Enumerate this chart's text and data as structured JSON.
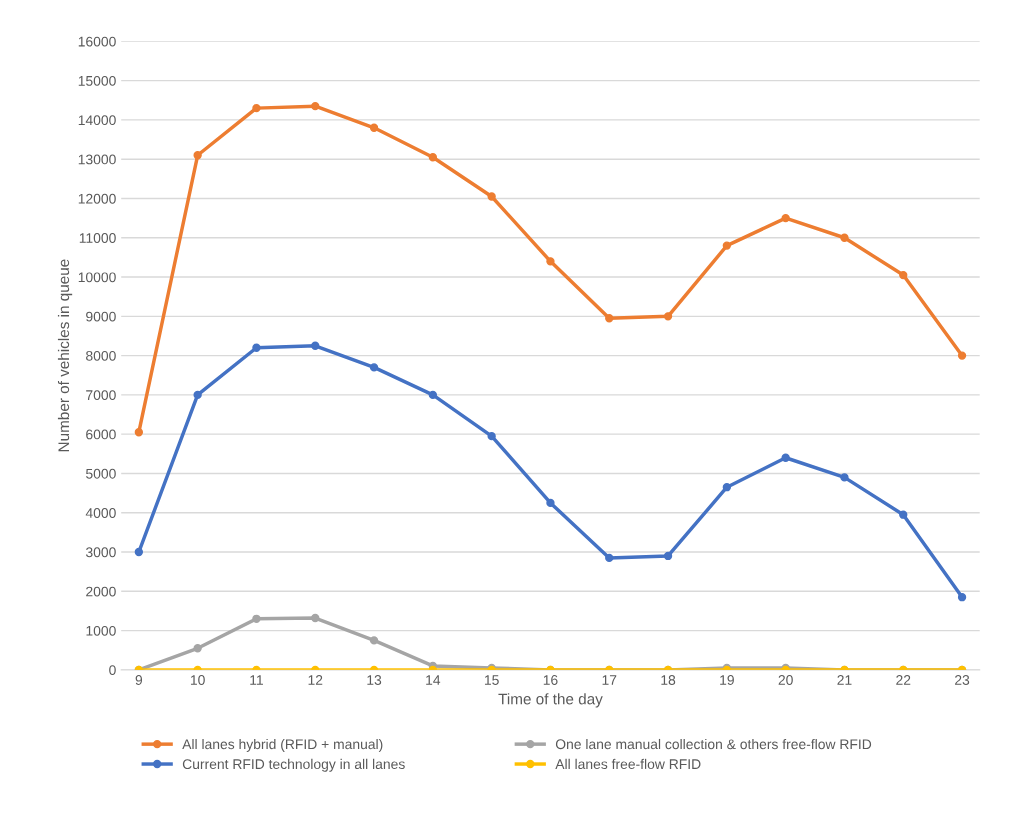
{
  "chart_data": {
    "type": "line",
    "xlabel": "Time of the day",
    "ylabel": "Number of vehicles in queue",
    "categories": [
      "9",
      "10",
      "11",
      "12",
      "13",
      "14",
      "15",
      "16",
      "17",
      "18",
      "19",
      "20",
      "21",
      "22",
      "23"
    ],
    "ylim": [
      0,
      16000
    ],
    "yticks": [
      0,
      1000,
      2000,
      3000,
      4000,
      5000,
      6000,
      7000,
      8000,
      9000,
      10000,
      11000,
      12000,
      13000,
      14000,
      15000,
      16000
    ],
    "grid": "y",
    "legend": "bottom",
    "marker": "circle",
    "line_style": "solid",
    "series": [
      {
        "name": "All lanes hybrid (RFID + manual)",
        "color": "#ed7d31",
        "values": [
          6050,
          13100,
          14300,
          14350,
          13800,
          13050,
          12050,
          10400,
          8950,
          9000,
          10800,
          11500,
          11000,
          10050,
          8000
        ]
      },
      {
        "name": "Current RFID technology in all lanes",
        "color": "#4472c4",
        "values": [
          3000,
          7000,
          8200,
          8250,
          7700,
          7000,
          5950,
          4250,
          2850,
          2900,
          4650,
          5400,
          4900,
          3950,
          1850
        ]
      },
      {
        "name": "One lane manual collection & others free-flow RFID",
        "color": "#a5a5a5",
        "values": [
          0,
          550,
          1300,
          1320,
          750,
          100,
          50,
          0,
          0,
          0,
          50,
          50,
          0,
          0,
          0
        ]
      },
      {
        "name": "All lanes free-flow RFID",
        "color": "#ffc000",
        "values": [
          0,
          0,
          0,
          0,
          0,
          0,
          0,
          0,
          0,
          0,
          0,
          0,
          0,
          0,
          0
        ]
      }
    ]
  }
}
